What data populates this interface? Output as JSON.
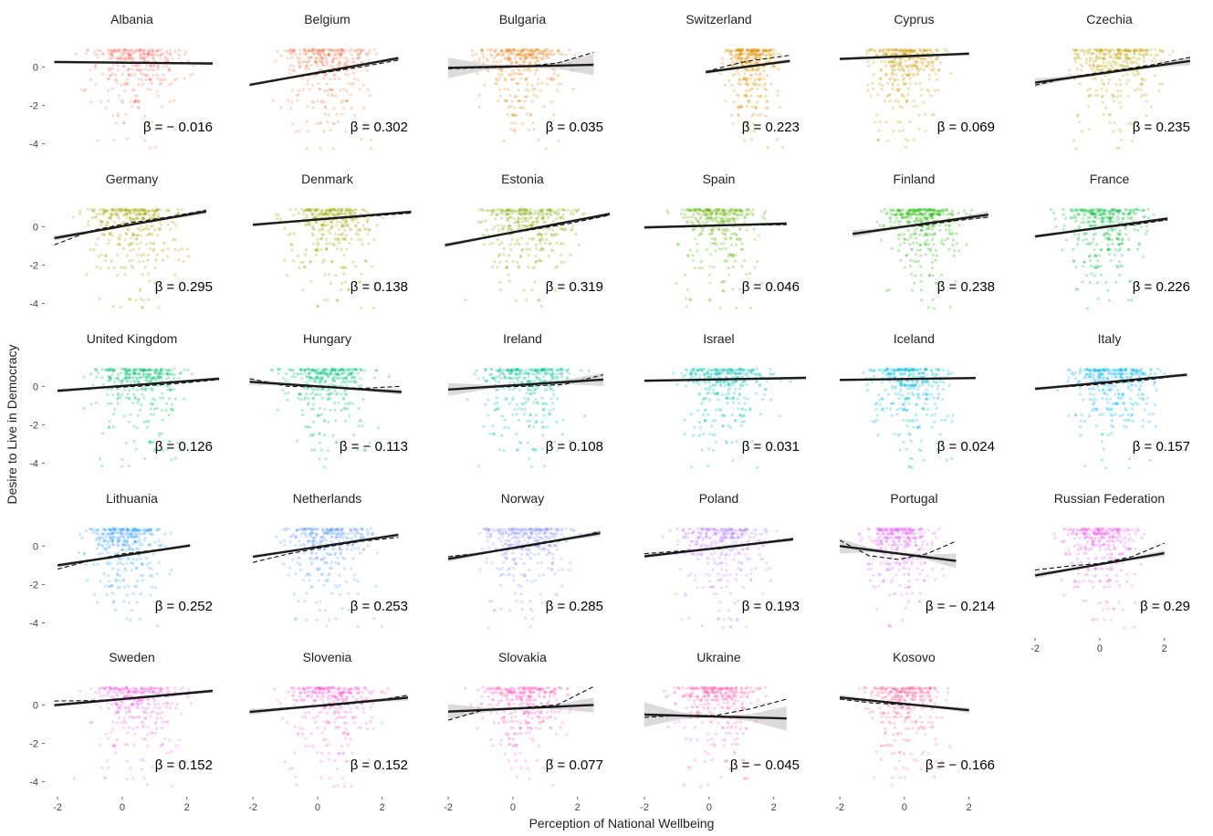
{
  "chart_data": {
    "type": "scatter",
    "xlabel": "Perception of National Wellbeing",
    "ylabel": "Desire to Live in Democracy",
    "xlim": [
      -2.2,
      2.8
    ],
    "ylim": [
      -4.4,
      1.2
    ],
    "x_ticks": [
      "-2",
      "0",
      "2"
    ],
    "y_ticks": [
      "0",
      "-2",
      "-4"
    ],
    "x_tick_values": [
      -2,
      0,
      2
    ],
    "y_tick_values": [
      0,
      -2,
      -4
    ],
    "dashed_line": "loess",
    "solid_line": "linear fit",
    "panels": [
      {
        "name": "Albania",
        "color": "#F8766D",
        "xr": [
          -2.1,
          2.8
        ],
        "fit": [
          0.22,
          -0.016
        ],
        "loess": [
          0.25,
          0.22,
          0.19,
          0.17,
          0.15
        ],
        "ci": 0.05,
        "beta": "β = − 0.016"
      },
      {
        "name": "Belgium",
        "color": "#F27D52",
        "xr": [
          -2.1,
          2.5
        ],
        "fit": [
          -0.3,
          0.302
        ],
        "loess": [
          -0.95,
          -0.6,
          -0.3,
          0.0,
          0.35
        ],
        "ci": 0.06,
        "beta": "β = 0.302"
      },
      {
        "name": "Bulgaria",
        "color": "#E7861B",
        "xr": [
          -2.0,
          2.5
        ],
        "fit": [
          0.02,
          0.035
        ],
        "loess": [
          -0.1,
          -0.05,
          0.0,
          0.2,
          0.75
        ],
        "ci": 0.5,
        "beta": "β = 0.035"
      },
      {
        "name": "Switzerland",
        "color": "#DB8E00",
        "xr": [
          -0.1,
          2.5
        ],
        "fit": [
          -0.25,
          0.223
        ],
        "loess": [
          -0.25,
          0.05,
          0.3,
          0.45,
          0.6
        ],
        "ci": 0.08,
        "beta": "β = 0.223"
      },
      {
        "name": "Cyprus",
        "color": "#CE9700",
        "xr": [
          -2.0,
          2.0
        ],
        "fit": [
          0.55,
          0.069
        ],
        "loess": [
          0.4,
          0.48,
          0.55,
          0.6,
          0.68
        ],
        "ci": 0.05,
        "beta": "β = 0.069"
      },
      {
        "name": "Czechia",
        "color": "#BFA000",
        "xr": [
          -2.0,
          2.8
        ],
        "fit": [
          -0.35,
          0.235
        ],
        "loess": [
          -0.95,
          -0.5,
          -0.2,
          0.1,
          0.5
        ],
        "ci": 0.18,
        "beta": "β = 0.235"
      },
      {
        "name": "Germany",
        "color": "#A3A500",
        "xr": [
          -2.1,
          2.6
        ],
        "fit": [
          0.02,
          0.295
        ],
        "loess": [
          -0.95,
          -0.2,
          0.2,
          0.5,
          0.85
        ],
        "ci": 0.1,
        "beta": "β = 0.295"
      },
      {
        "name": "Denmark",
        "color": "#93AA00",
        "xr": [
          -2.0,
          2.9
        ],
        "fit": [
          0.37,
          0.138
        ],
        "loess": [
          0.1,
          0.25,
          0.4,
          0.55,
          0.7
        ],
        "ci": 0.05,
        "beta": "β = 0.138"
      },
      {
        "name": "Estonia",
        "color": "#7CAE00",
        "xr": [
          -2.1,
          3.0
        ],
        "fit": [
          -0.3,
          0.319
        ],
        "loess": [
          -0.95,
          -0.55,
          -0.2,
          0.15,
          0.6
        ],
        "ci": 0.08,
        "beta": "β = 0.319"
      },
      {
        "name": "Spain",
        "color": "#5EB300",
        "xr": [
          -2.0,
          2.4
        ],
        "fit": [
          0.05,
          0.046
        ],
        "loess": [
          -0.05,
          -0.02,
          0.05,
          0.08,
          0.1
        ],
        "ci": 0.05,
        "beta": "β = 0.046"
      },
      {
        "name": "Finland",
        "color": "#1EB800",
        "xr": [
          -1.6,
          2.6
        ],
        "fit": [
          0.0,
          0.238
        ],
        "loess": [
          -0.35,
          -0.1,
          0.05,
          0.3,
          0.5
        ],
        "ci": 0.15,
        "beta": "β = 0.238"
      },
      {
        "name": "France",
        "color": "#00BA38",
        "xr": [
          -2.0,
          2.1
        ],
        "fit": [
          -0.06,
          0.226
        ],
        "loess": [
          -0.5,
          -0.3,
          -0.05,
          0.1,
          0.35
        ],
        "ci": 0.06,
        "beta": "β = 0.226"
      },
      {
        "name": "United Kingdom",
        "color": "#00BE67",
        "xr": [
          -2.0,
          3.0
        ],
        "fit": [
          0.02,
          0.126
        ],
        "loess": [
          -0.25,
          -0.1,
          0.0,
          0.15,
          0.35
        ],
        "ci": 0.06,
        "beta": "β = 0.126"
      },
      {
        "name": "Hungary",
        "color": "#00BF7D",
        "xr": [
          -2.1,
          2.6
        ],
        "fit": [
          0.0,
          -0.113
        ],
        "loess": [
          0.4,
          0.0,
          -0.05,
          -0.1,
          0.0
        ],
        "ci": 0.12,
        "beta": "β = − 0.113"
      },
      {
        "name": "Ireland",
        "color": "#00C097",
        "xr": [
          -2.0,
          2.8
        ],
        "fit": [
          0.05,
          0.108
        ],
        "loess": [
          -0.15,
          -0.05,
          0.0,
          0.1,
          0.6
        ],
        "ci": 0.3,
        "beta": "β = 0.108"
      },
      {
        "name": "Israel",
        "color": "#00C0AF",
        "xr": [
          -2.0,
          3.0
        ],
        "fit": [
          0.35,
          0.031
        ],
        "loess": [
          0.3,
          0.33,
          0.38,
          0.4,
          0.42
        ],
        "ci": 0.04,
        "beta": "β = 0.031"
      },
      {
        "name": "Iceland",
        "color": "#00BCD8",
        "xr": [
          -2.0,
          2.2
        ],
        "fit": [
          0.38,
          0.024
        ],
        "loess": [
          0.33,
          0.37,
          0.4,
          0.42,
          0.43
        ],
        "ci": 0.04,
        "beta": "β = 0.024"
      },
      {
        "name": "Italy",
        "color": "#00B4EF",
        "xr": [
          -2.0,
          2.7
        ],
        "fit": [
          0.18,
          0.157
        ],
        "loess": [
          -0.1,
          0.0,
          0.15,
          0.35,
          0.6
        ],
        "ci": 0.06,
        "beta": "β = 0.157"
      },
      {
        "name": "Lithuania",
        "color": "#35A2FF",
        "xr": [
          -2.0,
          2.1
        ],
        "fit": [
          -0.5,
          0.252
        ],
        "loess": [
          -1.2,
          -0.75,
          -0.4,
          -0.2,
          0.05
        ],
        "ci": 0.06,
        "beta": "β = 0.252"
      },
      {
        "name": "Netherlands",
        "color": "#619CFF",
        "xr": [
          -2.0,
          2.5
        ],
        "fit": [
          -0.05,
          0.253
        ],
        "loess": [
          -0.85,
          -0.4,
          -0.05,
          0.25,
          0.45
        ],
        "ci": 0.06,
        "beta": "β = 0.253"
      },
      {
        "name": "Norway",
        "color": "#8795FF",
        "xr": [
          -2.0,
          2.7
        ],
        "fit": [
          -0.1,
          0.285
        ],
        "loess": [
          -0.55,
          -0.35,
          -0.05,
          0.3,
          0.75
        ],
        "ci": 0.12,
        "beta": "β = 0.285"
      },
      {
        "name": "Poland",
        "color": "#BB83FF",
        "xr": [
          -2.0,
          2.6
        ],
        "fit": [
          -0.15,
          0.193
        ],
        "loess": [
          -0.4,
          -0.25,
          -0.15,
          0.15,
          0.4
        ],
        "ci": 0.06,
        "beta": "β = 0.193"
      },
      {
        "name": "Portugal",
        "color": "#E26CFA",
        "xr": [
          -2.0,
          1.6
        ],
        "fit": [
          -0.43,
          -0.214
        ],
        "loess": [
          0.3,
          -0.5,
          -0.7,
          -0.4,
          0.25
        ],
        "ci": 0.35,
        "beta": "β = − 0.214"
      },
      {
        "name": "Russian Federation",
        "color": "#EF67EB",
        "xr": [
          -2.0,
          2.0
        ],
        "fit": [
          -0.95,
          0.29
        ],
        "loess": [
          -1.25,
          -1.05,
          -0.9,
          -0.55,
          0.15
        ],
        "ci": 0.12,
        "beta": "β = 0.29"
      },
      {
        "name": "Sweden",
        "color": "#F564E3",
        "xr": [
          -2.1,
          2.8
        ],
        "fit": [
          0.3,
          0.152
        ],
        "loess": [
          0.2,
          0.22,
          0.32,
          0.5,
          0.7
        ],
        "ci": 0.05,
        "beta": "β = 0.152"
      },
      {
        "name": "Slovenia",
        "color": "#FA62D4",
        "xr": [
          -2.1,
          2.8
        ],
        "fit": [
          -0.05,
          0.152
        ],
        "loess": [
          -0.35,
          -0.15,
          -0.05,
          0.15,
          0.5
        ],
        "ci": 0.12,
        "beta": "β = 0.152"
      },
      {
        "name": "Slovakia",
        "color": "#FF61C3",
        "xr": [
          -2.0,
          2.5
        ],
        "fit": [
          -0.2,
          0.077
        ],
        "loess": [
          -0.8,
          -0.25,
          -0.15,
          0.0,
          0.95
        ],
        "ci": 0.35,
        "beta": "β = 0.077"
      },
      {
        "name": "Ukraine",
        "color": "#FF64B0",
        "xr": [
          -2.0,
          2.4
        ],
        "fit": [
          -0.6,
          -0.045
        ],
        "loess": [
          -0.65,
          -0.55,
          -0.55,
          -0.2,
          0.3
        ],
        "ci": 0.6,
        "beta": "β = − 0.045"
      },
      {
        "name": "Kosovo",
        "color": "#FF699C",
        "xr": [
          -2.0,
          2.0
        ],
        "fit": [
          0.05,
          -0.166
        ],
        "loess": [
          0.3,
          0.1,
          0.0,
          -0.1,
          -0.25
        ],
        "ci": 0.1,
        "beta": "β = − 0.166"
      }
    ]
  }
}
